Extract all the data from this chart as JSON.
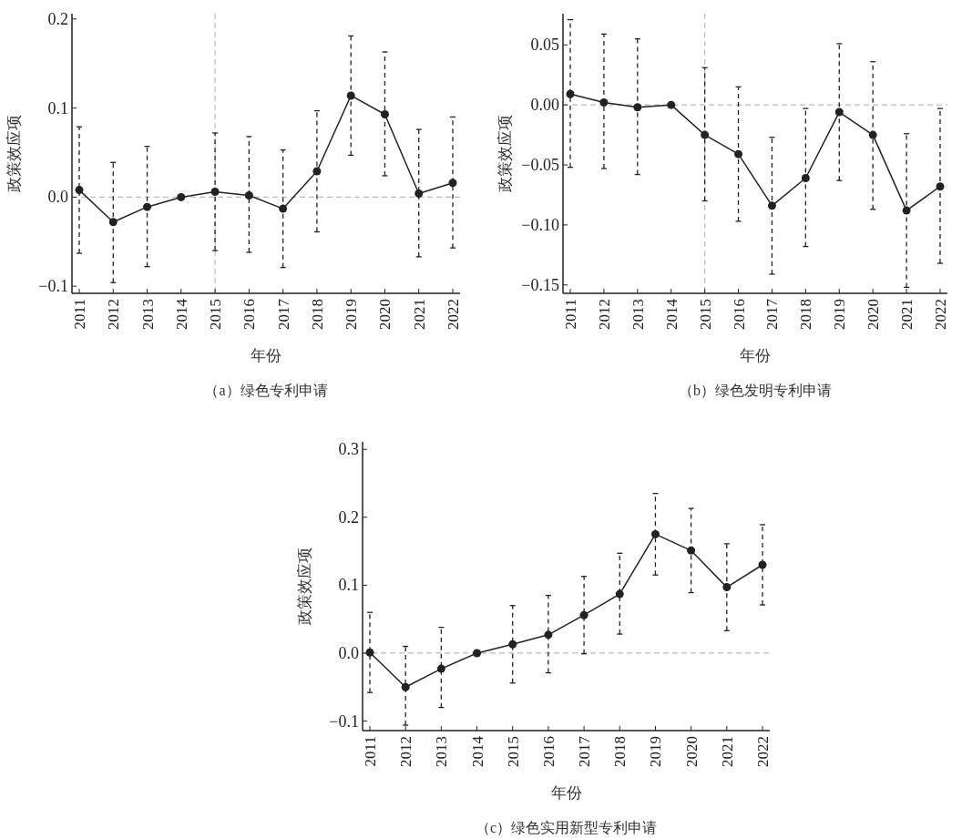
{
  "chart_data": [
    {
      "type": "line",
      "title": "（a）绿色专利申请",
      "xlabel": "年份",
      "ylabel": "政策效应项",
      "categories": [
        "2011",
        "2012",
        "2013",
        "2014",
        "2015",
        "2016",
        "2017",
        "2018",
        "2019",
        "2020",
        "2021",
        "2022"
      ],
      "series": [
        {
          "color": "#222222",
          "values": [
            0.008,
            -0.028,
            -0.011,
            0,
            0.006,
            0.002,
            -0.013,
            0.029,
            0.114,
            0.093,
            0.004,
            0.016
          ],
          "errors": [
            [
              -0.063,
              0.079
            ],
            [
              -0.096,
              0.039
            ],
            [
              -0.078,
              0.057
            ],
            null,
            [
              -0.06,
              0.072
            ],
            [
              -0.062,
              0.068
            ],
            [
              -0.079,
              0.053
            ],
            [
              -0.039,
              0.097
            ],
            [
              0.047,
              0.181
            ],
            [
              0.024,
              0.163
            ],
            [
              -0.067,
              0.076
            ],
            [
              -0.057,
              0.09
            ]
          ]
        }
      ],
      "ylim": [
        -0.108,
        0.206
      ],
      "yticks": [
        {
          "value": -0.1,
          "label": "−0.1"
        },
        {
          "value": 0,
          "label": "0.0"
        },
        {
          "value": 0.1,
          "label": "0.1"
        },
        {
          "value": 0.2,
          "label": "0.2"
        }
      ],
      "ref_lines": [
        {
          "axis": "y",
          "value": 0,
          "color": "#bbbbbb",
          "line_style": "dashed"
        },
        {
          "axis": "x",
          "value": "2015",
          "color": "#bbbbbb",
          "line_style": "dashed"
        }
      ],
      "marker": "circle",
      "line_style": "solid",
      "grid": false
    },
    {
      "type": "line",
      "title": "（b）绿色发明专利申请",
      "xlabel": "年份",
      "ylabel": "政策效应项",
      "categories": [
        "2011",
        "2012",
        "2013",
        "2014",
        "2015",
        "2016",
        "2017",
        "2018",
        "2019",
        "2020",
        "2021",
        "2022"
      ],
      "series": [
        {
          "color": "#222222",
          "values": [
            0.009,
            0.002,
            -0.002,
            0,
            -0.025,
            -0.041,
            -0.084,
            -0.061,
            -0.006,
            -0.025,
            -0.088,
            -0.068
          ],
          "errors": [
            [
              -0.052,
              0.071
            ],
            [
              -0.053,
              0.059
            ],
            [
              -0.058,
              0.055
            ],
            null,
            [
              -0.08,
              0.031
            ],
            [
              -0.097,
              0.015
            ],
            [
              -0.141,
              -0.027
            ],
            [
              -0.118,
              -0.003
            ],
            [
              -0.063,
              0.051
            ],
            [
              -0.087,
              0.036
            ],
            [
              -0.152,
              -0.024
            ],
            [
              -0.132,
              -0.003
            ]
          ]
        }
      ],
      "ylim": [
        -0.157,
        0.076
      ],
      "yticks": [
        {
          "value": -0.15,
          "label": "−0.15"
        },
        {
          "value": -0.1,
          "label": "−0.10"
        },
        {
          "value": -0.05,
          "label": "−0.05"
        },
        {
          "value": 0,
          "label": "0.00"
        },
        {
          "value": 0.05,
          "label": "0.05"
        }
      ],
      "ref_lines": [
        {
          "axis": "y",
          "value": 0,
          "color": "#bbbbbb",
          "line_style": "dashed"
        },
        {
          "axis": "x",
          "value": "2015",
          "color": "#bbbbbb",
          "line_style": "dashed"
        }
      ],
      "marker": "circle",
      "line_style": "solid",
      "grid": false
    },
    {
      "type": "line",
      "title": "（c）绿色实用新型专利申请",
      "xlabel": "年份",
      "ylabel": "政策效应项",
      "categories": [
        "2011",
        "2012",
        "2013",
        "2014",
        "2015",
        "2016",
        "2017",
        "2018",
        "2019",
        "2020",
        "2021",
        "2022"
      ],
      "series": [
        {
          "color": "#222222",
          "values": [
            0.001,
            -0.05,
            -0.023,
            0,
            0.013,
            0.027,
            0.056,
            0.087,
            0.175,
            0.151,
            0.097,
            0.13
          ],
          "errors": [
            [
              -0.058,
              0.06
            ],
            [
              -0.106,
              0.01
            ],
            [
              -0.08,
              0.038
            ],
            null,
            [
              -0.044,
              0.07
            ],
            [
              -0.029,
              0.085
            ],
            [
              -0.001,
              0.113
            ],
            [
              0.028,
              0.147
            ],
            [
              0.115,
              0.235
            ],
            [
              0.089,
              0.213
            ],
            [
              0.033,
              0.161
            ],
            [
              0.071,
              0.189
            ]
          ]
        }
      ],
      "ylim": [
        -0.114,
        0.311
      ],
      "yticks": [
        {
          "value": -0.1,
          "label": "−0.1"
        },
        {
          "value": 0,
          "label": "0.0"
        },
        {
          "value": 0.1,
          "label": "0.1"
        },
        {
          "value": 0.2,
          "label": "0.2"
        },
        {
          "value": 0.3,
          "label": "0.3"
        }
      ],
      "ref_lines": [
        {
          "axis": "y",
          "value": 0,
          "color": "#bbbbbb",
          "line_style": "dashed"
        }
      ],
      "marker": "circle",
      "line_style": "solid",
      "grid": false
    }
  ]
}
